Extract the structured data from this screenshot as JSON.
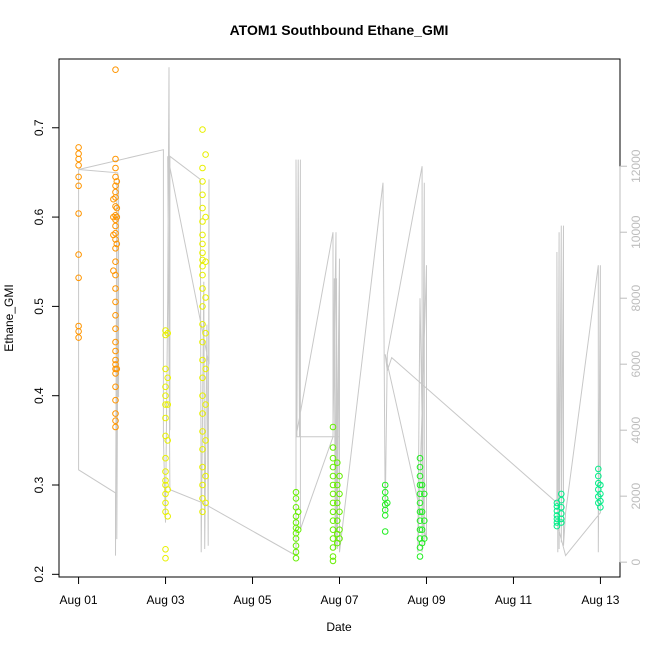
{
  "chart_data": {
    "type": "scatter",
    "title": "ATOM1 Southbound Ethane_GMI",
    "xlabel": "Date",
    "ylabel": "Ethane_GMI",
    "x_ticks": [
      "Aug 01",
      "Aug 03",
      "Aug 05",
      "Aug 07",
      "Aug 09",
      "Aug 11",
      "Aug 13"
    ],
    "x_tick_days": [
      1,
      3,
      5,
      7,
      9,
      11,
      13
    ],
    "xlim": [
      0.55,
      13.45
    ],
    "ylim": [
      0.197,
      0.777
    ],
    "y_ticks": [
      0.2,
      0.3,
      0.4,
      0.5,
      0.6,
      0.7
    ],
    "y2_ticks": [
      0,
      2000,
      4000,
      6000,
      8000,
      10000,
      12000
    ],
    "y2lim": [
      -450,
      15250
    ],
    "grid": false,
    "marker": "open-circle",
    "series": [
      {
        "color": "#ff9500",
        "points": [
          [
            1.0,
            0.678
          ],
          [
            1.0,
            0.671
          ],
          [
            1.0,
            0.665
          ],
          [
            1.0,
            0.658
          ],
          [
            1.0,
            0.645
          ],
          [
            1.0,
            0.635
          ],
          [
            1.0,
            0.604
          ],
          [
            1.0,
            0.558
          ],
          [
            1.0,
            0.532
          ],
          [
            1.0,
            0.478
          ],
          [
            1.0,
            0.472
          ],
          [
            1.0,
            0.465
          ],
          [
            1.85,
            0.765
          ],
          [
            1.85,
            0.665
          ],
          [
            1.85,
            0.655
          ],
          [
            1.85,
            0.645
          ],
          [
            1.85,
            0.635
          ],
          [
            1.85,
            0.628
          ],
          [
            1.85,
            0.622
          ],
          [
            1.85,
            0.612
          ],
          [
            1.85,
            0.602
          ],
          [
            1.85,
            0.597
          ],
          [
            1.85,
            0.59
          ],
          [
            1.85,
            0.582
          ],
          [
            1.85,
            0.575
          ],
          [
            1.85,
            0.565
          ],
          [
            1.85,
            0.55
          ],
          [
            1.85,
            0.535
          ],
          [
            1.85,
            0.52
          ],
          [
            1.85,
            0.505
          ],
          [
            1.85,
            0.49
          ],
          [
            1.85,
            0.475
          ],
          [
            1.85,
            0.46
          ],
          [
            1.85,
            0.45
          ],
          [
            1.85,
            0.44
          ],
          [
            1.85,
            0.435
          ],
          [
            1.85,
            0.43
          ],
          [
            1.85,
            0.425
          ],
          [
            1.85,
            0.41
          ],
          [
            1.85,
            0.395
          ],
          [
            1.85,
            0.38
          ],
          [
            1.85,
            0.372
          ],
          [
            1.85,
            0.365
          ],
          [
            1.88,
            0.64
          ],
          [
            1.88,
            0.61
          ],
          [
            1.88,
            0.6
          ],
          [
            1.88,
            0.57
          ],
          [
            1.88,
            0.43
          ],
          [
            1.8,
            0.62
          ],
          [
            1.8,
            0.6
          ],
          [
            1.8,
            0.58
          ],
          [
            1.8,
            0.54
          ]
        ]
      },
      {
        "color": "#e8f000",
        "points": [
          [
            3.0,
            0.473
          ],
          [
            3.0,
            0.468
          ],
          [
            3.0,
            0.43
          ],
          [
            3.0,
            0.41
          ],
          [
            3.0,
            0.4
          ],
          [
            3.0,
            0.39
          ],
          [
            3.0,
            0.375
          ],
          [
            3.0,
            0.355
          ],
          [
            3.0,
            0.33
          ],
          [
            3.0,
            0.315
          ],
          [
            3.0,
            0.305
          ],
          [
            3.0,
            0.3
          ],
          [
            3.0,
            0.29
          ],
          [
            3.0,
            0.28
          ],
          [
            3.0,
            0.27
          ],
          [
            3.0,
            0.228
          ],
          [
            3.0,
            0.218
          ],
          [
            3.05,
            0.47
          ],
          [
            3.05,
            0.42
          ],
          [
            3.05,
            0.39
          ],
          [
            3.05,
            0.35
          ],
          [
            3.05,
            0.295
          ],
          [
            3.05,
            0.265
          ],
          [
            3.85,
            0.698
          ],
          [
            3.85,
            0.655
          ],
          [
            3.85,
            0.64
          ],
          [
            3.85,
            0.625
          ],
          [
            3.85,
            0.61
          ],
          [
            3.85,
            0.595
          ],
          [
            3.85,
            0.58
          ],
          [
            3.85,
            0.57
          ],
          [
            3.85,
            0.56
          ],
          [
            3.85,
            0.552
          ],
          [
            3.85,
            0.545
          ],
          [
            3.85,
            0.535
          ],
          [
            3.85,
            0.52
          ],
          [
            3.85,
            0.5
          ],
          [
            3.85,
            0.48
          ],
          [
            3.85,
            0.46
          ],
          [
            3.85,
            0.44
          ],
          [
            3.85,
            0.42
          ],
          [
            3.85,
            0.4
          ],
          [
            3.85,
            0.38
          ],
          [
            3.85,
            0.36
          ],
          [
            3.85,
            0.34
          ],
          [
            3.85,
            0.32
          ],
          [
            3.85,
            0.3
          ],
          [
            3.85,
            0.285
          ],
          [
            3.85,
            0.27
          ],
          [
            3.92,
            0.67
          ],
          [
            3.92,
            0.6
          ],
          [
            3.92,
            0.55
          ],
          [
            3.92,
            0.51
          ],
          [
            3.92,
            0.47
          ],
          [
            3.92,
            0.43
          ],
          [
            3.92,
            0.39
          ],
          [
            3.92,
            0.35
          ],
          [
            3.92,
            0.31
          ],
          [
            3.92,
            0.28
          ]
        ]
      },
      {
        "color": "#66ee00",
        "points": [
          [
            6.0,
            0.292
          ],
          [
            6.0,
            0.285
          ],
          [
            6.0,
            0.275
          ],
          [
            6.0,
            0.265
          ],
          [
            6.0,
            0.258
          ],
          [
            6.0,
            0.252
          ],
          [
            6.0,
            0.246
          ],
          [
            6.0,
            0.24
          ],
          [
            6.0,
            0.232
          ],
          [
            6.0,
            0.225
          ],
          [
            6.0,
            0.218
          ],
          [
            6.05,
            0.27
          ],
          [
            6.05,
            0.25
          ],
          [
            6.85,
            0.365
          ],
          [
            6.85,
            0.342
          ],
          [
            6.85,
            0.33
          ],
          [
            6.85,
            0.32
          ],
          [
            6.85,
            0.31
          ],
          [
            6.85,
            0.3
          ],
          [
            6.85,
            0.29
          ],
          [
            6.85,
            0.28
          ],
          [
            6.85,
            0.27
          ],
          [
            6.85,
            0.26
          ],
          [
            6.85,
            0.25
          ],
          [
            6.85,
            0.24
          ],
          [
            6.85,
            0.23
          ],
          [
            6.85,
            0.22
          ],
          [
            6.85,
            0.215
          ],
          [
            6.95,
            0.325
          ],
          [
            6.95,
            0.3
          ],
          [
            6.95,
            0.28
          ],
          [
            6.95,
            0.26
          ],
          [
            6.95,
            0.245
          ],
          [
            6.95,
            0.235
          ],
          [
            7.0,
            0.31
          ],
          [
            7.0,
            0.29
          ],
          [
            7.0,
            0.27
          ],
          [
            7.0,
            0.25
          ],
          [
            7.0,
            0.24
          ]
        ]
      },
      {
        "color": "#22ee22",
        "points": [
          [
            8.05,
            0.3
          ],
          [
            8.05,
            0.292
          ],
          [
            8.05,
            0.285
          ],
          [
            8.05,
            0.278
          ],
          [
            8.05,
            0.272
          ],
          [
            8.05,
            0.266
          ],
          [
            8.05,
            0.248
          ],
          [
            8.1,
            0.28
          ],
          [
            8.85,
            0.33
          ],
          [
            8.85,
            0.32
          ],
          [
            8.85,
            0.31
          ],
          [
            8.85,
            0.3
          ],
          [
            8.85,
            0.29
          ],
          [
            8.85,
            0.28
          ],
          [
            8.85,
            0.27
          ],
          [
            8.85,
            0.26
          ],
          [
            8.85,
            0.25
          ],
          [
            8.85,
            0.24
          ],
          [
            8.85,
            0.23
          ],
          [
            8.85,
            0.22
          ],
          [
            8.9,
            0.3
          ],
          [
            8.9,
            0.27
          ],
          [
            8.9,
            0.25
          ],
          [
            8.9,
            0.235
          ],
          [
            8.95,
            0.29
          ],
          [
            8.95,
            0.26
          ],
          [
            8.95,
            0.24
          ]
        ]
      },
      {
        "color": "#00ee88",
        "points": [
          [
            12.0,
            0.28
          ],
          [
            12.0,
            0.276
          ],
          [
            12.0,
            0.271
          ],
          [
            12.0,
            0.266
          ],
          [
            12.0,
            0.262
          ],
          [
            12.0,
            0.258
          ],
          [
            12.0,
            0.254
          ],
          [
            12.1,
            0.29
          ],
          [
            12.1,
            0.283
          ],
          [
            12.1,
            0.275
          ],
          [
            12.1,
            0.268
          ],
          [
            12.1,
            0.262
          ],
          [
            12.1,
            0.258
          ],
          [
            12.95,
            0.318
          ],
          [
            12.95,
            0.31
          ],
          [
            12.95,
            0.302
          ],
          [
            12.95,
            0.295
          ],
          [
            12.95,
            0.287
          ],
          [
            12.95,
            0.28
          ],
          [
            13.0,
            0.3
          ],
          [
            13.0,
            0.29
          ],
          [
            13.0,
            0.282
          ],
          [
            13.0,
            0.275
          ]
        ]
      }
    ],
    "secondary_line": {
      "color": "#c8c8c8",
      "points": [
        [
          1.0,
          11900
        ],
        [
          1.0,
          11200
        ],
        [
          1.0,
          6600
        ],
        [
          1.0,
          5100
        ],
        [
          1.0,
          3600
        ],
        [
          1.0,
          2800
        ],
        [
          1.85,
          2100
        ],
        [
          1.85,
          1200
        ],
        [
          1.85,
          200
        ],
        [
          1.88,
          11500
        ],
        [
          1.88,
          3000
        ],
        [
          1.88,
          700
        ],
        [
          1.92,
          11000
        ],
        [
          1.92,
          5000
        ],
        [
          1.92,
          11600
        ],
        [
          1.9,
          11800
        ],
        [
          1.0,
          11900
        ],
        [
          2.95,
          12500
        ],
        [
          2.95,
          7500
        ],
        [
          2.95,
          3800
        ],
        [
          3.0,
          1200
        ],
        [
          3.05,
          8000
        ],
        [
          3.08,
          15000
        ],
        [
          3.1,
          4000
        ],
        [
          3.1,
          12300
        ],
        [
          3.8,
          11600
        ],
        [
          3.82,
          300
        ],
        [
          3.88,
          8500
        ],
        [
          3.9,
          400
        ],
        [
          3.95,
          7200
        ],
        [
          3.98,
          500
        ],
        [
          4.0,
          11600
        ],
        [
          4.0,
          6000
        ],
        [
          3.05,
          12300
        ],
        [
          3.1,
          2200
        ],
        [
          3.85,
          1800
        ],
        [
          6.0,
          200
        ],
        [
          6.0,
          12200
        ],
        [
          6.02,
          3800
        ],
        [
          6.05,
          12200
        ],
        [
          6.08,
          3800
        ],
        [
          6.1,
          12200
        ],
        [
          6.1,
          1000
        ],
        [
          6.85,
          3800
        ],
        [
          6.88,
          8600
        ],
        [
          6.9,
          400
        ],
        [
          6.93,
          8600
        ],
        [
          6.95,
          400
        ],
        [
          7.0,
          8500
        ],
        [
          7.0,
          3800
        ],
        [
          6.0,
          3800
        ],
        [
          6.85,
          10000
        ],
        [
          6.85,
          4000
        ],
        [
          6.92,
          10000
        ],
        [
          6.92,
          500
        ],
        [
          7.0,
          9200
        ],
        [
          7.0,
          300
        ],
        [
          8.0,
          11500
        ],
        [
          8.05,
          1500
        ],
        [
          8.1,
          6300
        ],
        [
          8.9,
          12000
        ],
        [
          8.9,
          300
        ],
        [
          8.95,
          11500
        ],
        [
          8.95,
          500
        ],
        [
          8.85,
          8000
        ],
        [
          8.8,
          300
        ],
        [
          9.0,
          9000
        ],
        [
          9.0,
          700
        ],
        [
          8.05,
          6300
        ],
        [
          8.1,
          5800
        ],
        [
          8.2,
          6200
        ],
        [
          12.0,
          1800
        ],
        [
          12.0,
          9400
        ],
        [
          12.02,
          300
        ],
        [
          12.05,
          10000
        ],
        [
          12.05,
          400
        ],
        [
          12.1,
          10200
        ],
        [
          12.1,
          600
        ],
        [
          12.15,
          10200
        ],
        [
          12.15,
          500
        ],
        [
          12.2,
          1500
        ],
        [
          12.95,
          9000
        ],
        [
          12.95,
          300
        ],
        [
          13.0,
          9000
        ],
        [
          13.0,
          1500
        ],
        [
          12.2,
          200
        ],
        [
          12.0,
          1200
        ]
      ]
    }
  }
}
